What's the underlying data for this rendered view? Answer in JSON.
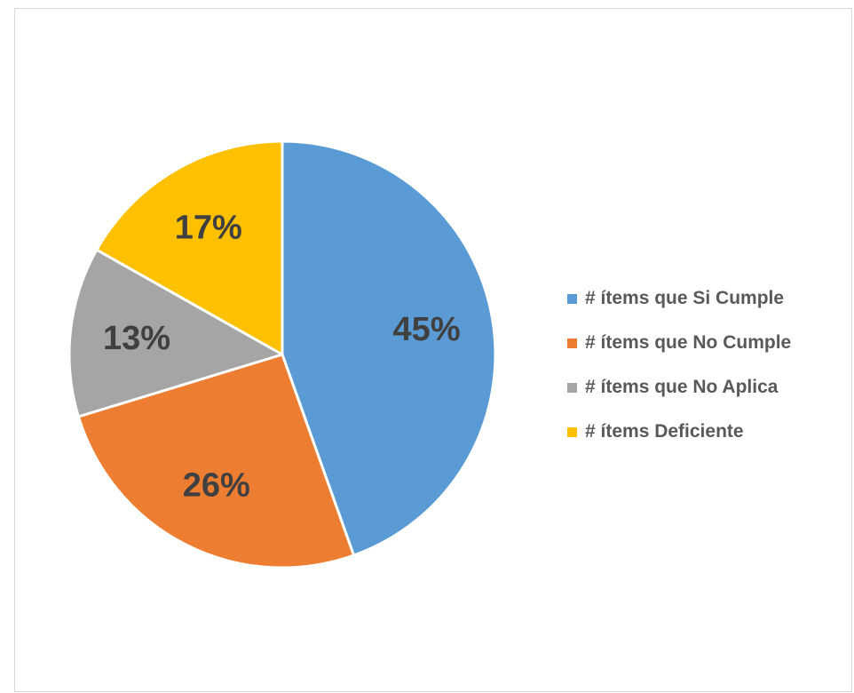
{
  "chart_data": {
    "type": "pie",
    "title": "",
    "legend_position": "right",
    "slices": [
      {
        "name": "# ítems que Si Cumple",
        "value": 45,
        "label": "45%",
        "color": "#5b9bd5"
      },
      {
        "name": "# ítems que No Cumple",
        "value": 26,
        "label": "26%",
        "color": "#ed7d31"
      },
      {
        "name": "# ítems que No Aplica",
        "value": 13,
        "label": "13%",
        "color": "#a5a5a5"
      },
      {
        "name": "# ítems Deficiente",
        "value": 17,
        "label": "17%",
        "color": "#ffc000"
      }
    ]
  }
}
